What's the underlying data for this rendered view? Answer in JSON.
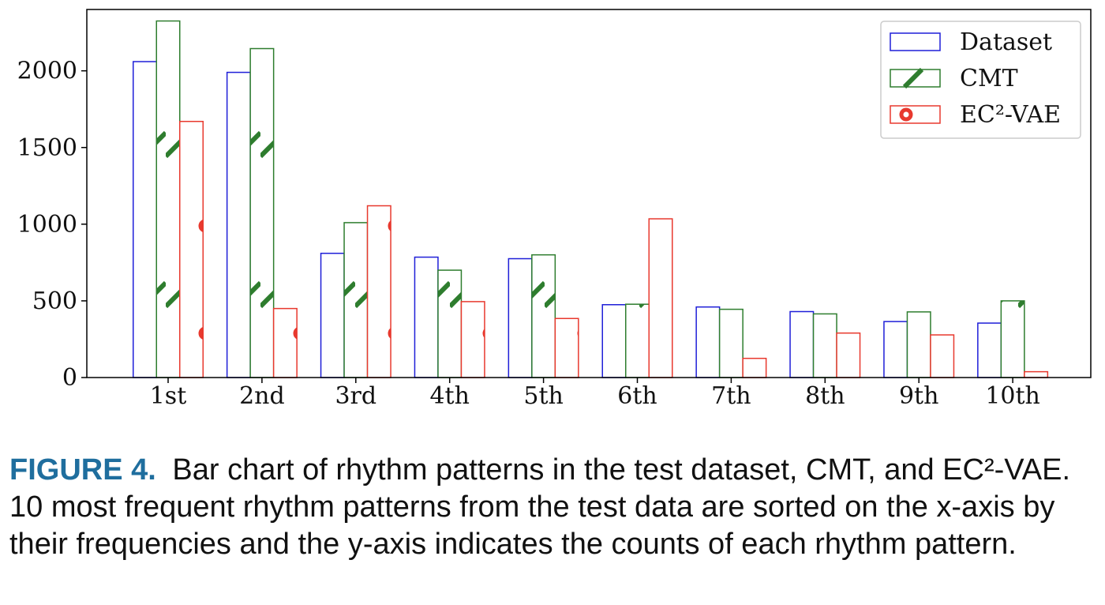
{
  "chart_data": {
    "type": "bar",
    "categories": [
      "1st",
      "2nd",
      "3rd",
      "4th",
      "5th",
      "6th",
      "7th",
      "8th",
      "9th",
      "10th"
    ],
    "series": [
      {
        "name": "Dataset",
        "color": "#1f1fd8",
        "pattern": "none",
        "values": [
          2060,
          1990,
          810,
          785,
          775,
          475,
          460,
          430,
          365,
          355
        ]
      },
      {
        "name": "CMT",
        "color": "#2e7d2e",
        "pattern": "diagonal-hatch",
        "values": [
          2325,
          2145,
          1010,
          700,
          800,
          478,
          445,
          415,
          428,
          500
        ]
      },
      {
        "name": "EC²-VAE",
        "color": "#e8392e",
        "pattern": "ring-dots",
        "values": [
          1670,
          450,
          1120,
          495,
          385,
          1035,
          125,
          290,
          278,
          38
        ]
      }
    ],
    "ylim": [
      0,
      2400
    ],
    "yticks": [
      0,
      500,
      1000,
      1500,
      2000
    ],
    "title": "",
    "xlabel": "",
    "ylabel": "",
    "legend_position": "top-right",
    "grid": false
  },
  "caption": {
    "label": "FIGURE 4.",
    "text": "Bar chart of rhythm patterns in the test dataset, CMT, and EC²-VAE. 10 most frequent rhythm patterns from the test data are sorted on the x-axis by their frequencies and the y-axis indicates the counts of each rhythm pattern."
  }
}
